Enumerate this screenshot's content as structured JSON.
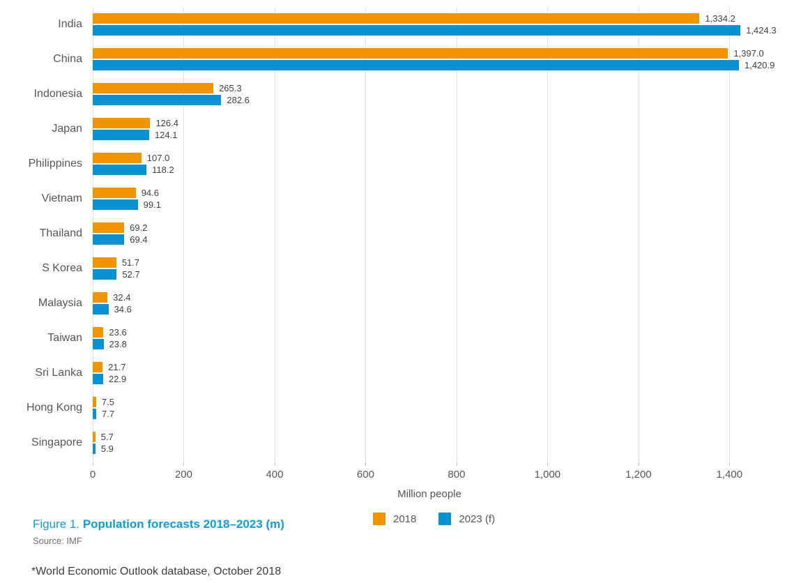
{
  "chart_data": {
    "type": "bar",
    "orientation": "horizontal",
    "title": "Population forecasts 2018–2023 (m)",
    "categories": [
      "India",
      "China",
      "Indonesia",
      "Japan",
      "Philippines",
      "Vietnam",
      "Thailand",
      "S Korea",
      "Malaysia",
      "Taiwan",
      "Sri Lanka",
      "Hong Kong",
      "Singapore"
    ],
    "series": [
      {
        "name": "2018",
        "color": "#f29300",
        "values": [
          1334.2,
          1397.0,
          265.3,
          126.4,
          107.0,
          94.6,
          69.2,
          51.7,
          32.4,
          23.6,
          21.7,
          7.5,
          5.7
        ],
        "value_labels": [
          "1,334.2",
          "1,397.0",
          "265.3",
          "126.4",
          "107.0",
          "94.6",
          "69.2",
          "51.7",
          "32.4",
          "23.6",
          "21.7",
          "7.5",
          "5.7"
        ]
      },
      {
        "name": "2023 (f)",
        "color": "#0991d1",
        "values": [
          1424.3,
          1420.9,
          282.6,
          124.1,
          118.2,
          99.1,
          69.4,
          52.7,
          34.6,
          23.8,
          22.9,
          7.7,
          5.9
        ],
        "value_labels": [
          "1,424.3",
          "1,420.9",
          "282.6",
          "124.1",
          "118.2",
          "99.1",
          "69.4",
          "52.7",
          "34.6",
          "23.8",
          "22.9",
          "7.7",
          "5.9"
        ]
      }
    ],
    "xlabel": "Million people",
    "x_ticks": [
      {
        "value": 0,
        "label": "0"
      },
      {
        "value": 200,
        "label": "200"
      },
      {
        "value": 400,
        "label": "400"
      },
      {
        "value": 600,
        "label": "600"
      },
      {
        "value": 800,
        "label": "800"
      },
      {
        "value": 1000,
        "label": "1,000"
      },
      {
        "value": 1200,
        "label": "1,200"
      },
      {
        "value": 1400,
        "label": "1,400"
      }
    ],
    "xlim": [
      0,
      1542
    ],
    "grid": true,
    "legend_position": "bottom"
  },
  "legend": [
    {
      "label": "2018",
      "color": "#f29300"
    },
    {
      "label": "2023 (f)",
      "color": "#0991d1"
    }
  ],
  "caption": {
    "prefix": "Figure 1. ",
    "title": "Population forecasts 2018–2023 (m)"
  },
  "source": "Source: IMF",
  "footnote": "*World Economic Outlook database, October 2018",
  "colors": {
    "series_2018": "#f29300",
    "series_2023": "#0991d1",
    "caption_blue": "#0e9cd9",
    "gridline": "#e2e2e2",
    "text_gray": "#54565a"
  }
}
